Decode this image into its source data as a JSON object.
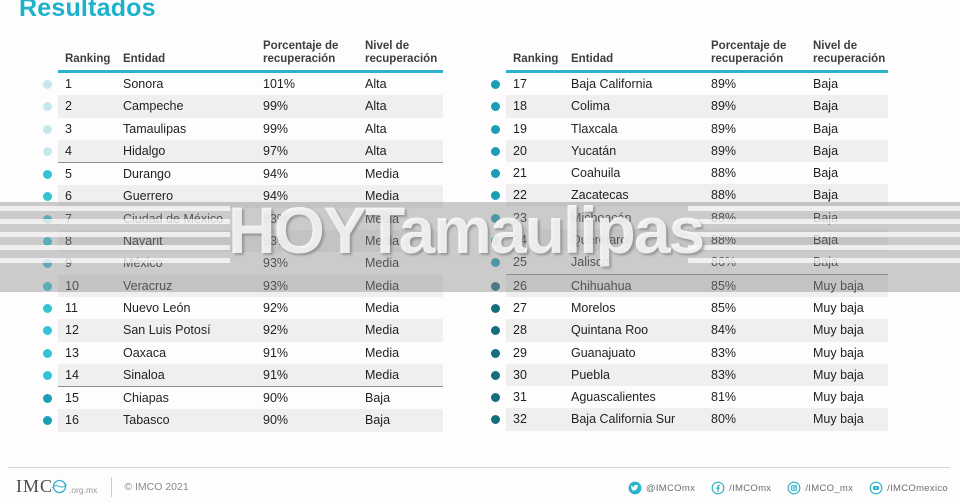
{
  "title": "Resultados",
  "accent_color": "#2ab3c9",
  "table_header": {
    "ranking": "Ranking",
    "entidad": "Entidad",
    "porcentaje_line1": "Porcentaje de",
    "porcentaje_line2": "recuperación",
    "nivel_line1": "Nivel de",
    "nivel_line2": "recuperación"
  },
  "level_colors": {
    "Alta": "#c5e8ef",
    "Media": "#33c3d5",
    "Baja": "#1b9db6",
    "Muy baja": "#136e7d"
  },
  "chart_data": {
    "type": "table",
    "title": "Resultados",
    "columns": [
      "Ranking",
      "Entidad",
      "Porcentaje de recuperación",
      "Nivel de recuperación"
    ],
    "divider_after_ranks": [
      4,
      14,
      25
    ],
    "rows": [
      [
        1,
        "Sonora",
        "101%",
        "Alta"
      ],
      [
        2,
        "Campeche",
        "99%",
        "Alta"
      ],
      [
        3,
        "Tamaulipas",
        "99%",
        "Alta"
      ],
      [
        4,
        "Hidalgo",
        "97%",
        "Alta"
      ],
      [
        5,
        "Durango",
        "94%",
        "Media"
      ],
      [
        6,
        "Guerrero",
        "94%",
        "Media"
      ],
      [
        7,
        "Ciudad de México",
        "93%",
        "Media"
      ],
      [
        8,
        "Nayarit",
        "93%",
        "Media"
      ],
      [
        9,
        "México",
        "93%",
        "Media"
      ],
      [
        10,
        "Veracruz",
        "93%",
        "Media"
      ],
      [
        11,
        "Nuevo León",
        "92%",
        "Media"
      ],
      [
        12,
        "San Luis Potosí",
        "92%",
        "Media"
      ],
      [
        13,
        "Oaxaca",
        "91%",
        "Media"
      ],
      [
        14,
        "Sinaloa",
        "91%",
        "Media"
      ],
      [
        15,
        "Chiapas",
        "90%",
        "Baja"
      ],
      [
        16,
        "Tabasco",
        "90%",
        "Baja"
      ],
      [
        17,
        "Baja California",
        "89%",
        "Baja"
      ],
      [
        18,
        "Colima",
        "89%",
        "Baja"
      ],
      [
        19,
        "Tlaxcala",
        "89%",
        "Baja"
      ],
      [
        20,
        "Yucatán",
        "89%",
        "Baja"
      ],
      [
        21,
        "Coahuila",
        "88%",
        "Baja"
      ],
      [
        22,
        "Zacatecas",
        "88%",
        "Baja"
      ],
      [
        23,
        "Michoacán",
        "88%",
        "Baja"
      ],
      [
        24,
        "Querétaro",
        "88%",
        "Baja"
      ],
      [
        25,
        "Jalisco",
        "86%",
        "Baja"
      ],
      [
        26,
        "Chihuahua",
        "85%",
        "Muy baja"
      ],
      [
        27,
        "Morelos",
        "85%",
        "Muy baja"
      ],
      [
        28,
        "Quintana Roo",
        "84%",
        "Muy baja"
      ],
      [
        29,
        "Guanajuato",
        "83%",
        "Muy baja"
      ],
      [
        30,
        "Puebla",
        "83%",
        "Muy baja"
      ],
      [
        31,
        "Aguascalientes",
        "81%",
        "Muy baja"
      ],
      [
        32,
        "Baja California Sur",
        "80%",
        "Muy baja"
      ]
    ]
  },
  "watermark": {
    "text": "HOYTamaulipas"
  },
  "footer": {
    "logo_text": "IMC",
    "logo_suffix": ".org.mx",
    "copyright": "© IMCO 2021",
    "social": [
      {
        "icon": "twitter-icon",
        "handle": "@IMCOmx"
      },
      {
        "icon": "facebook-icon",
        "handle": "/IMCOmx"
      },
      {
        "icon": "instagram-icon",
        "handle": "/IMCO_mx"
      },
      {
        "icon": "youtube-icon",
        "handle": "/IMCOmexico"
      }
    ]
  }
}
